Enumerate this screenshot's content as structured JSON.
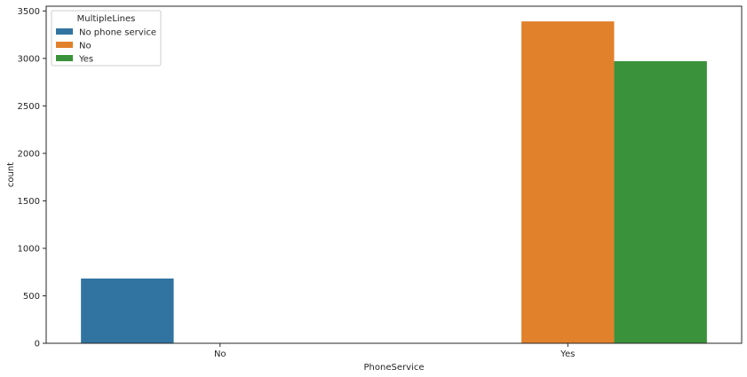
{
  "chart_data": {
    "type": "bar",
    "title": "",
    "xlabel": "PhoneService",
    "ylabel": "count",
    "categories": [
      "No",
      "Yes"
    ],
    "ylim": [
      0,
      3550
    ],
    "yticks": [
      0,
      500,
      1000,
      1500,
      2000,
      2500,
      3000,
      3500
    ],
    "legend": {
      "title": "MultipleLines",
      "placement": "top-left"
    },
    "grid": false,
    "series": [
      {
        "name": "No phone service",
        "color": "#3274a1",
        "values": [
          682,
          0
        ]
      },
      {
        "name": "No",
        "color": "#e1812c",
        "values": [
          0,
          3390
        ]
      },
      {
        "name": "Yes",
        "color": "#3a923a",
        "values": [
          0,
          2971
        ]
      }
    ]
  }
}
